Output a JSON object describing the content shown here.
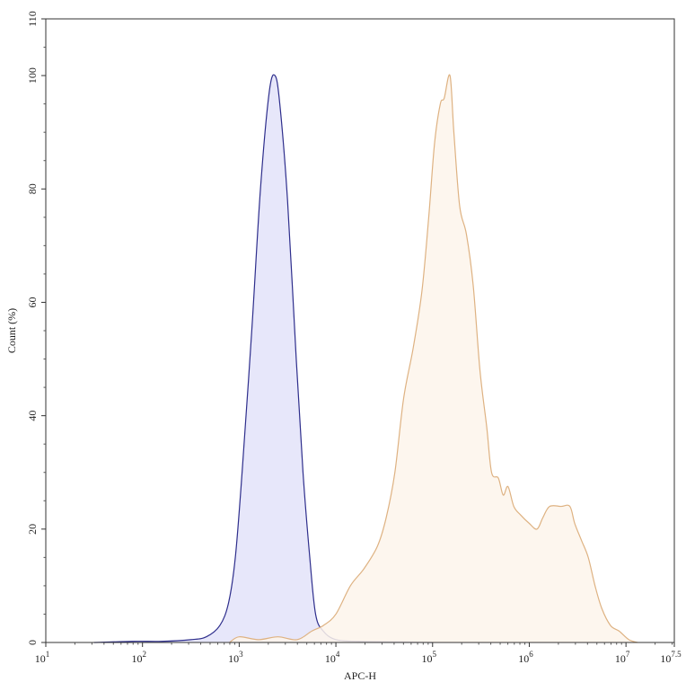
{
  "chart_data": {
    "type": "area",
    "title": "",
    "xlabel": "APC-H",
    "ylabel": "Count (%)",
    "x_scale": "log10",
    "xlim": [
      10,
      31622776
    ],
    "ylim": [
      0,
      110
    ],
    "x_ticks": [
      {
        "base": "10",
        "exp": "1",
        "value": 10
      },
      {
        "base": "10",
        "exp": "2",
        "value": 100
      },
      {
        "base": "10",
        "exp": "3",
        "value": 1000
      },
      {
        "base": "10",
        "exp": "4",
        "value": 10000
      },
      {
        "base": "10",
        "exp": "5",
        "value": 100000
      },
      {
        "base": "10",
        "exp": "6",
        "value": 1000000
      },
      {
        "base": "10",
        "exp": "7",
        "value": 10000000
      },
      {
        "base": "10",
        "exp": "7.5",
        "value": 31622776
      }
    ],
    "y_ticks": [
      "0",
      "20",
      "40",
      "60",
      "80",
      "100",
      "110"
    ],
    "grid": false,
    "series": [
      {
        "color": "#2e2e8c",
        "fill": "#e7e7fa",
        "log10_x": [
          1.5,
          1.9,
          2.2,
          2.5,
          2.66,
          2.8,
          2.89,
          2.96,
          3.03,
          3.13,
          3.22,
          3.31,
          3.37,
          3.42,
          3.5,
          3.59,
          3.66,
          3.73,
          3.79,
          3.87,
          4.0,
          4.24,
          4.7,
          5.0
        ],
        "y": [
          0,
          0.2,
          0.2,
          0.5,
          1,
          3,
          7,
          15,
          30,
          55,
          80,
          97,
          100,
          95,
          78,
          50,
          30,
          15,
          5,
          2,
          0.5,
          0.2,
          0.1,
          0
        ]
      },
      {
        "color": "#deb282",
        "fill": "#fdf4eb",
        "log10_x": [
          2.9,
          3.0,
          3.2,
          3.4,
          3.6,
          3.75,
          3.87,
          4.0,
          4.15,
          4.29,
          4.43,
          4.52,
          4.61,
          4.7,
          4.8,
          4.89,
          4.96,
          5.02,
          5.08,
          5.12,
          5.18,
          5.22,
          5.28,
          5.35,
          5.42,
          5.49,
          5.56,
          5.61,
          5.68,
          5.73,
          5.78,
          5.84,
          5.91,
          6.0,
          6.08,
          6.14,
          6.21,
          6.33,
          6.42,
          6.47,
          6.54,
          6.61,
          6.68,
          6.75,
          6.84,
          6.93,
          7.03,
          7.12
        ],
        "y": [
          0,
          1,
          0.5,
          1,
          0.5,
          2,
          3,
          5,
          10,
          13,
          17,
          22,
          30,
          43,
          52,
          62,
          75,
          88,
          95,
          96,
          100,
          90,
          77,
          72,
          63,
          48,
          38,
          30,
          29,
          26,
          27.5,
          24,
          22.5,
          21,
          20,
          22,
          24,
          24,
          24,
          21,
          18,
          15,
          10,
          6,
          3,
          2,
          0.5,
          0
        ]
      }
    ]
  }
}
